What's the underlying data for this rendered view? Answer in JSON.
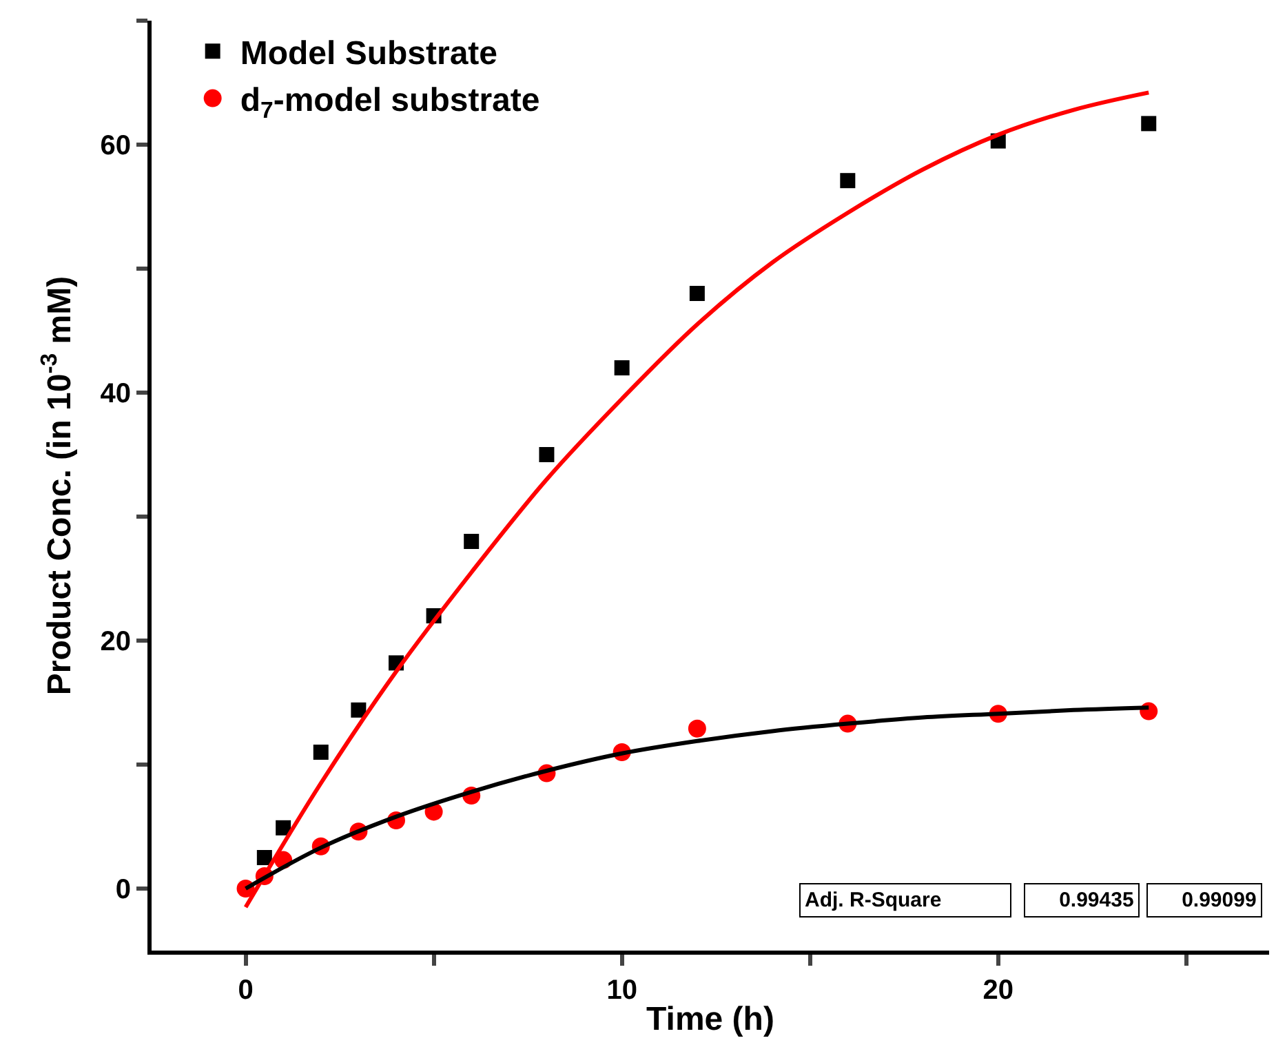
{
  "chart_data": {
    "type": "scatter",
    "xlabel": "Time (h)",
    "ylabel": "Product Conc. (in 10$^{-3}$ mM)",
    "xlim": [
      -2.5,
      27.2
    ],
    "ylim": [
      -5,
      70
    ],
    "xticks": [
      0,
      {
        "value": 5,
        "label": null
      },
      10,
      {
        "value": 15,
        "label": null
      },
      20,
      {
        "value": 25,
        "label": null
      }
    ],
    "yticks": [
      0,
      {
        "value": 10,
        "label": null
      },
      20,
      {
        "value": 30,
        "label": null
      },
      40,
      {
        "value": 50,
        "label": null
      },
      60,
      {
        "value": 70,
        "label": null
      }
    ],
    "legend": "top left",
    "series": [
      {
        "name": "Model Substrate",
        "marker": "square",
        "color": "#000000",
        "x": [
          0.5,
          1,
          2,
          3,
          4,
          5,
          6,
          8,
          10,
          12,
          16,
          20,
          24
        ],
        "values": [
          2.5,
          4.9,
          11,
          14.4,
          18.2,
          22,
          28,
          35,
          42,
          48,
          57.1,
          60.3,
          61.7
        ]
      },
      {
        "name": "d$_{7}$-model substrate",
        "marker": "circle",
        "color": "#ff0000",
        "x": [
          0,
          0.5,
          1,
          2,
          3,
          4,
          5,
          6,
          8,
          10,
          12,
          16,
          20,
          24
        ],
        "values": [
          0,
          1,
          2.3,
          3.4,
          4.6,
          5.5,
          6.2,
          7.5,
          9.3,
          11,
          12.9,
          13.3,
          14.1,
          14.3
        ]
      },
      {
        "type": "line",
        "marker": "none",
        "color": "#ff0000",
        "x": [
          0,
          2,
          4,
          6,
          8,
          10,
          12,
          14,
          16,
          18,
          20,
          22,
          24
        ],
        "values": [
          -1.5,
          8.5,
          17.5,
          25.5,
          33,
          39.5,
          45.5,
          50.5,
          54.5,
          58,
          60.8,
          62.8,
          64.2
        ]
      },
      {
        "type": "line",
        "marker": "none",
        "color": "#000000",
        "x": [
          0,
          2,
          4,
          6,
          8,
          10,
          12,
          14,
          16,
          18,
          20,
          22,
          24
        ],
        "values": [
          0,
          3.3,
          5.8,
          7.8,
          9.5,
          10.9,
          11.9,
          12.7,
          13.3,
          13.8,
          14.1,
          14.4,
          14.6
        ]
      }
    ],
    "annotations": [
      "Adj. R-Square",
      "0.99435",
      "0.99099"
    ]
  }
}
